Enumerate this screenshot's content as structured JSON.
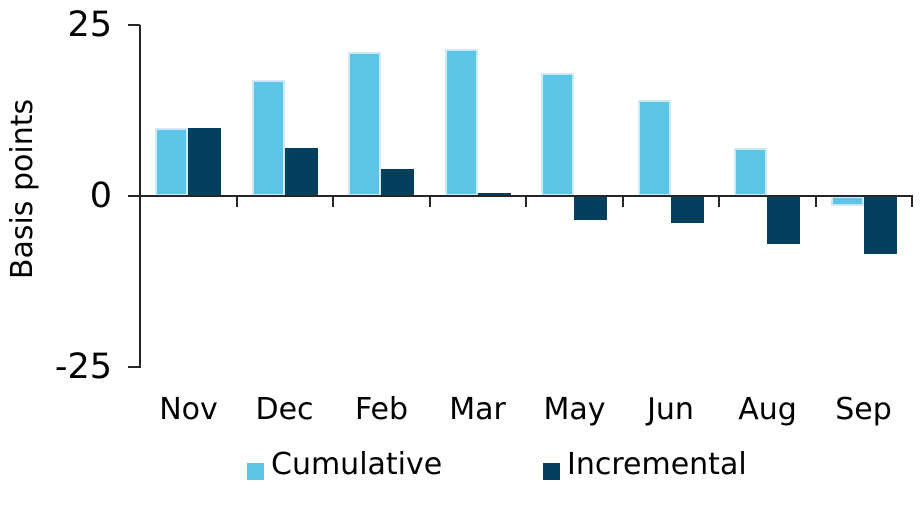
{
  "chart_data": {
    "type": "bar",
    "title": "",
    "xlabel": "",
    "ylabel": "Basis points",
    "categories": [
      "Nov",
      "Dec",
      "Feb",
      "Mar",
      "May",
      "Jun",
      "Aug",
      "Sep"
    ],
    "series": [
      {
        "name": "Cumulative",
        "color": "#5BC5E8",
        "values": [
          10,
          17,
          21,
          21.5,
          18,
          14,
          7,
          -1.5
        ]
      },
      {
        "name": "Incremental",
        "color": "#053F5E",
        "values": [
          10,
          7,
          4,
          0.5,
          -3.5,
          -4,
          -7,
          -8.5
        ]
      }
    ],
    "yticks": [
      25,
      0,
      -25
    ],
    "ytick_labels": [
      "25",
      "0",
      "-25"
    ],
    "ylim": [
      -25,
      25
    ],
    "grid": false,
    "legend_position": "bottom",
    "colors": {
      "axis": "#262626",
      "text": "#000000",
      "bar_border": "#CFEAF6",
      "background": "#FFFFFF"
    }
  }
}
